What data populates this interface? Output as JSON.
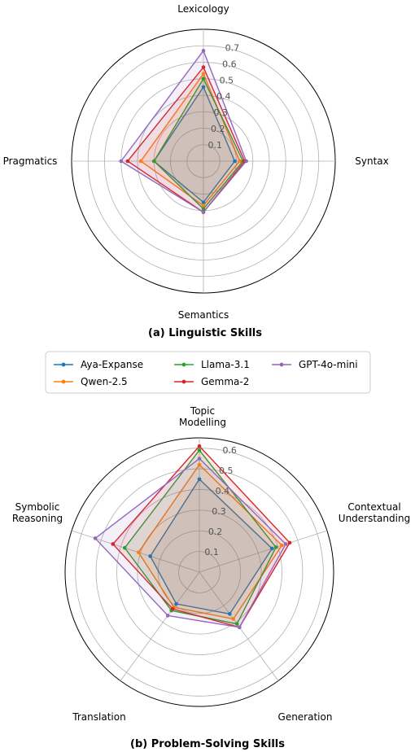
{
  "legend": [
    {
      "name": "Aya-Expanse",
      "color": "#1f77b4"
    },
    {
      "name": "Qwen-2.5",
      "color": "#ff7f0e"
    },
    {
      "name": "Llama-3.1",
      "color": "#2ca02c"
    },
    {
      "name": "Gemma-2",
      "color": "#d62728"
    },
    {
      "name": "GPT-4o-mini",
      "color": "#9467bd"
    }
  ],
  "chart_data": [
    {
      "type": "radar",
      "caption": "(a) Linguistic Skills",
      "axes": [
        "Lexicology",
        "Syntax",
        "Semantics",
        "Pragmatics"
      ],
      "rlim": [
        0,
        0.8
      ],
      "ticks": [
        "0.1",
        "0.2",
        "0.3",
        "0.4",
        "0.5",
        "0.6",
        "0.7"
      ],
      "series": [
        {
          "name": "Aya-Expanse",
          "color": "#1f77b4",
          "values": [
            0.45,
            0.19,
            0.25,
            0.3
          ]
        },
        {
          "name": "Qwen-2.5",
          "color": "#ff7f0e",
          "values": [
            0.53,
            0.22,
            0.27,
            0.38
          ]
        },
        {
          "name": "Llama-3.1",
          "color": "#2ca02c",
          "values": [
            0.5,
            0.24,
            0.29,
            0.3
          ]
        },
        {
          "name": "Gemma-2",
          "color": "#d62728",
          "values": [
            0.57,
            0.25,
            0.31,
            0.46
          ]
        },
        {
          "name": "GPT-4o-mini",
          "color": "#9467bd",
          "values": [
            0.67,
            0.26,
            0.31,
            0.5
          ]
        }
      ]
    },
    {
      "type": "radar",
      "caption": "(b) Problem-Solving Skills",
      "axes": [
        "Topic\nModelling",
        "Contextual\nUnderstanding",
        "Generation",
        "Translation",
        "Symbolic\nReasoning"
      ],
      "rlim": [
        0,
        0.65
      ],
      "ticks": [
        "0.1",
        "0.2",
        "0.3",
        "0.4",
        "0.5",
        "0.6"
      ],
      "series": [
        {
          "name": "Aya-Expanse",
          "color": "#1f77b4",
          "values": [
            0.45,
            0.37,
            0.25,
            0.19,
            0.25
          ]
        },
        {
          "name": "Qwen-2.5",
          "color": "#ff7f0e",
          "values": [
            0.52,
            0.42,
            0.28,
            0.21,
            0.31
          ]
        },
        {
          "name": "Llama-3.1",
          "color": "#2ca02c",
          "values": [
            0.59,
            0.39,
            0.31,
            0.23,
            0.38
          ]
        },
        {
          "name": "Gemma-2",
          "color": "#d62728",
          "values": [
            0.61,
            0.46,
            0.33,
            0.22,
            0.44
          ]
        },
        {
          "name": "GPT-4o-mini",
          "color": "#9467bd",
          "values": [
            0.55,
            0.44,
            0.33,
            0.26,
            0.53
          ]
        }
      ]
    }
  ]
}
